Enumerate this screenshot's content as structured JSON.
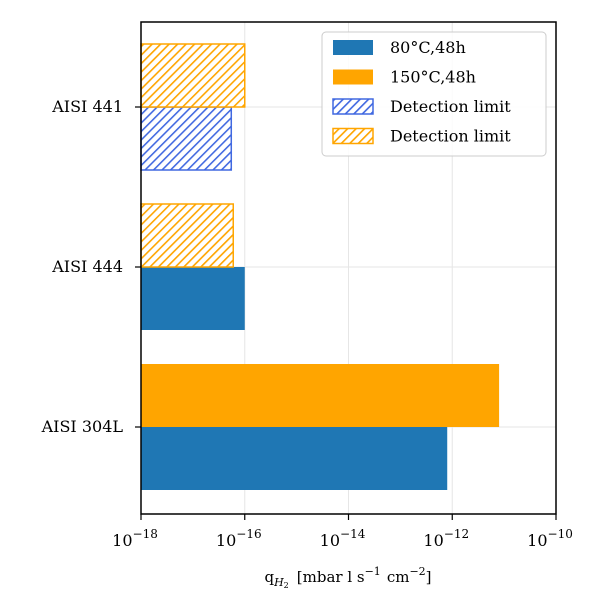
{
  "chart_data": {
    "type": "bar",
    "orientation": "horizontal",
    "x_scale": "log",
    "xlim": [
      1e-18,
      1e-10
    ],
    "x_ticks": [
      {
        "value": 1e-18,
        "base": "10",
        "exp": "−18"
      },
      {
        "value": 1e-16,
        "base": "10",
        "exp": "−16"
      },
      {
        "value": 1e-14,
        "base": "10",
        "exp": "−14"
      },
      {
        "value": 1e-12,
        "base": "10",
        "exp": "−12"
      },
      {
        "value": 1e-10,
        "base": "10",
        "exp": "−10"
      }
    ],
    "xlabel": {
      "q": "q",
      "sub": "H",
      "sub2": "2",
      "unit_a": "[mbar l s",
      "exp1": "−1",
      "unit_b": "cm",
      "exp2": "−2",
      "close": "]"
    },
    "categories": [
      "AISI 304L",
      "AISI 444",
      "AISI 441"
    ],
    "series": [
      {
        "name": "80°C,48h",
        "color": "#1f77b4",
        "values": [
          8e-13,
          1e-16,
          5.5e-17
        ],
        "hatched": [
          false,
          false,
          true
        ]
      },
      {
        "name": "150°C,48h",
        "color": "#ffa500",
        "values": [
          8e-12,
          6e-17,
          1e-16
        ],
        "hatched": [
          false,
          true,
          true
        ]
      }
    ],
    "legend": {
      "position": "top-right",
      "entries": [
        {
          "label": "80°C,48h",
          "color": "#1f77b4",
          "hatched": false
        },
        {
          "label": "150°C,48h",
          "color": "#ffa500",
          "hatched": false
        },
        {
          "label": "Detection limit",
          "color": "#4169e1",
          "hatched": true
        },
        {
          "label": "Detection limit",
          "color": "#ffa500",
          "hatched": true
        }
      ]
    },
    "grid": true
  }
}
